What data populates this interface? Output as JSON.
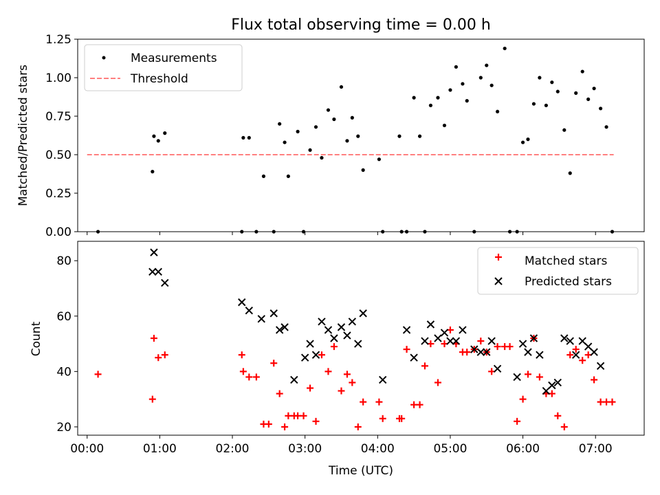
{
  "title": "Flux total observing time = 0.00 h",
  "colors": {
    "measurement": "#000000",
    "threshold": "#ff7f7f",
    "matched": "#ff0000",
    "predicted": "#000000"
  },
  "chart_data": [
    {
      "type": "scatter",
      "ylabel": "Matched/Predicted stars",
      "xlim": [
        -0.13,
        7.67
      ],
      "ylim": [
        0,
        1.25
      ],
      "yticks": [
        0,
        0.25,
        0.5,
        0.75,
        1.0,
        1.25
      ],
      "ytick_labels": [
        "0.00",
        "0.25",
        "0.50",
        "0.75",
        "1.00",
        "1.25"
      ],
      "legend_position": "top-left",
      "series": [
        {
          "name": "Measurements",
          "marker": "dot",
          "x": [
            0.15,
            0.9,
            0.92,
            0.98,
            1.07,
            2.13,
            2.15,
            2.23,
            2.33,
            2.43,
            2.57,
            2.65,
            2.72,
            2.77,
            2.9,
            2.98,
            3.07,
            3.15,
            3.23,
            3.32,
            3.4,
            3.5,
            3.58,
            3.65,
            3.73,
            3.8,
            4.02,
            4.07,
            4.3,
            4.33,
            4.4,
            4.5,
            4.58,
            4.65,
            4.73,
            4.83,
            4.92,
            5.0,
            5.08,
            5.17,
            5.23,
            5.33,
            5.42,
            5.5,
            5.57,
            5.65,
            5.75,
            5.82,
            5.92,
            6.0,
            6.07,
            6.15,
            6.23,
            6.32,
            6.4,
            6.48,
            6.57,
            6.65,
            6.73,
            6.82,
            6.9,
            6.98,
            7.07,
            7.15,
            7.23
          ],
          "y": [
            0.0,
            0.39,
            0.62,
            0.59,
            0.64,
            0.0,
            0.61,
            0.61,
            0.0,
            0.36,
            0.0,
            0.7,
            0.58,
            0.36,
            0.65,
            0.0,
            0.53,
            0.68,
            0.48,
            0.79,
            0.73,
            0.94,
            0.59,
            0.74,
            0.62,
            0.4,
            0.47,
            0.0,
            0.62,
            0.0,
            0.0,
            0.87,
            0.62,
            0.0,
            0.82,
            0.87,
            0.69,
            0.92,
            1.07,
            0.96,
            0.85,
            0.0,
            1.0,
            1.08,
            0.95,
            0.78,
            1.19,
            0.0,
            0.0,
            0.58,
            0.6,
            0.83,
            1.0,
            0.82,
            0.97,
            0.91,
            0.66,
            0.38,
            0.9,
            1.04,
            0.86,
            0.93,
            0.8,
            0.68,
            0.0
          ]
        },
        {
          "name": "Threshold",
          "style": "dashed",
          "x": [
            0.0,
            7.25
          ],
          "y": [
            0.5,
            0.5
          ]
        }
      ]
    },
    {
      "type": "scatter",
      "xlabel": "Time (UTC)",
      "ylabel": "Count",
      "xlim": [
        -0.13,
        7.67
      ],
      "ylim": [
        17,
        87
      ],
      "xticks": [
        0,
        1,
        2,
        3,
        4,
        5,
        6,
        7
      ],
      "xtick_labels": [
        "00:00",
        "01:00",
        "02:00",
        "03:00",
        "04:00",
        "05:00",
        "06:00",
        "07:00"
      ],
      "yticks": [
        20,
        40,
        60,
        80
      ],
      "ytick_labels": [
        "20",
        "40",
        "60",
        "80"
      ],
      "legend_position": "top-right",
      "series": [
        {
          "name": "Matched stars",
          "marker": "plus",
          "x": [
            0.15,
            0.9,
            0.92,
            0.98,
            1.07,
            2.13,
            2.15,
            2.23,
            2.33,
            2.43,
            2.5,
            2.57,
            2.65,
            2.72,
            2.77,
            2.85,
            2.9,
            2.98,
            3.07,
            3.15,
            3.23,
            3.32,
            3.4,
            3.5,
            3.58,
            3.65,
            3.73,
            3.8,
            4.02,
            4.07,
            4.3,
            4.33,
            4.4,
            4.5,
            4.58,
            4.65,
            4.73,
            4.83,
            4.92,
            5.0,
            5.08,
            5.17,
            5.23,
            5.33,
            5.42,
            5.5,
            5.57,
            5.65,
            5.75,
            5.82,
            5.92,
            6.0,
            6.07,
            6.15,
            6.23,
            6.32,
            6.4,
            6.48,
            6.57,
            6.65,
            6.73,
            6.82,
            6.9,
            6.98,
            7.07,
            7.15,
            7.23
          ],
          "y": [
            39,
            30,
            52,
            45,
            46,
            46,
            40,
            38,
            38,
            21,
            21,
            43,
            32,
            20,
            24,
            24,
            24,
            24,
            34,
            22,
            46,
            40,
            49,
            33,
            39,
            36,
            20,
            29,
            29,
            23,
            23,
            23,
            48,
            28,
            28,
            42,
            50,
            36,
            50,
            55,
            50,
            47,
            47,
            48,
            51,
            47,
            40,
            49,
            49,
            49,
            22,
            30,
            39,
            52,
            38,
            32,
            32,
            24,
            20,
            46,
            48,
            44,
            46,
            37,
            29,
            29,
            29
          ]
        },
        {
          "name": "Predicted stars",
          "marker": "cross",
          "x": [
            0.9,
            0.92,
            0.98,
            1.07,
            2.13,
            2.23,
            2.4,
            2.57,
            2.65,
            2.72,
            2.85,
            3.0,
            3.07,
            3.15,
            3.23,
            3.32,
            3.4,
            3.5,
            3.58,
            3.65,
            3.73,
            3.8,
            4.07,
            4.4,
            4.5,
            4.65,
            4.73,
            4.83,
            4.92,
            5.0,
            5.08,
            5.17,
            5.33,
            5.42,
            5.5,
            5.57,
            5.65,
            5.92,
            6.0,
            6.07,
            6.15,
            6.23,
            6.32,
            6.4,
            6.48,
            6.57,
            6.65,
            6.73,
            6.82,
            6.9,
            6.98,
            7.07
          ],
          "y": [
            76,
            83,
            76,
            72,
            65,
            62,
            59,
            61,
            55,
            56,
            37,
            45,
            50,
            46,
            58,
            55,
            52,
            56,
            53,
            58,
            50,
            61,
            37,
            55,
            45,
            51,
            57,
            52,
            54,
            51,
            51,
            55,
            48,
            47,
            47,
            51,
            41,
            38,
            50,
            47,
            52,
            46,
            33,
            35,
            36,
            52,
            51,
            46,
            51,
            49,
            47,
            42
          ]
        }
      ]
    }
  ]
}
